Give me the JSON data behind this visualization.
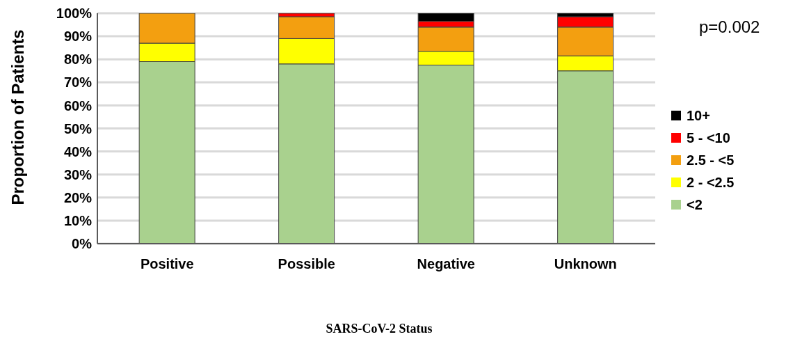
{
  "chart_data": {
    "type": "bar",
    "stacked": true,
    "xlabel": "SARS-CoV-2 Status",
    "ylabel": "Proportion of Patients",
    "categories": [
      "Positive",
      "Possible",
      "Negative",
      "Unknown"
    ],
    "series": [
      {
        "name": "<2",
        "color": "#a9d18e",
        "values": [
          79,
          78,
          77.5,
          75
        ]
      },
      {
        "name": "2 - <2.5",
        "color": "#ffff00",
        "values": [
          8,
          11,
          6,
          6.5
        ]
      },
      {
        "name": "2.5 - <5",
        "color": "#f39f10",
        "values": [
          13,
          9.5,
          10.5,
          12.5
        ]
      },
      {
        "name": "5 - <10",
        "color": "#ff0000",
        "values": [
          0,
          1.5,
          2.5,
          4.5
        ]
      },
      {
        "name": "10+",
        "color": "#000000",
        "values": [
          0,
          0,
          3.5,
          1.5
        ]
      }
    ],
    "ylim": [
      0,
      100
    ],
    "yticks": [
      {
        "value": 0,
        "label": "0%"
      },
      {
        "value": 10,
        "label": "10%"
      },
      {
        "value": 20,
        "label": "20%"
      },
      {
        "value": 30,
        "label": "30%"
      },
      {
        "value": 40,
        "label": "40%"
      },
      {
        "value": 50,
        "label": "50%"
      },
      {
        "value": 60,
        "label": "60%"
      },
      {
        "value": 70,
        "label": "70%"
      },
      {
        "value": 80,
        "label": "80%"
      },
      {
        "value": 90,
        "label": "90%"
      },
      {
        "value": 100,
        "label": "100%"
      }
    ],
    "grid": "y",
    "legend": "right",
    "annotations": [
      "p=0.002"
    ]
  }
}
